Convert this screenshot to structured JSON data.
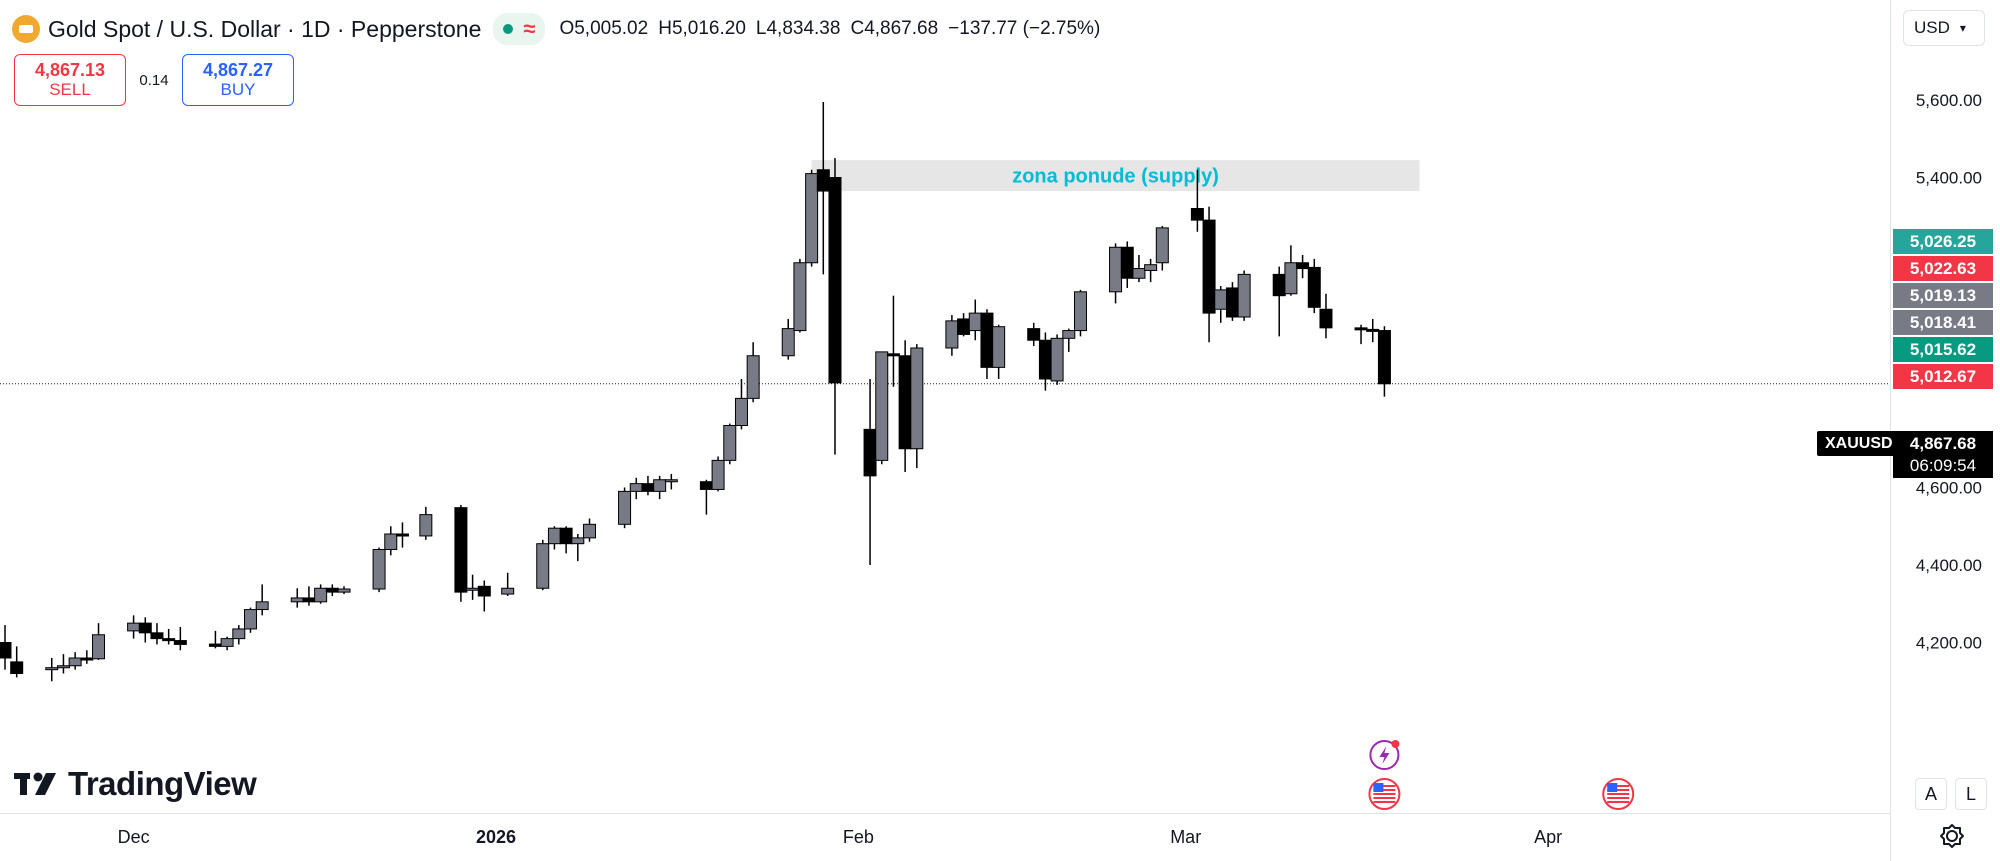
{
  "header": {
    "title": "Gold Spot / U.S. Dollar · 1D · Pepperstone",
    "open_label": "O",
    "open": "5,005.02",
    "high_label": "H",
    "high": "5,016.20",
    "low_label": "L",
    "low": "4,834.38",
    "close_label": "C",
    "close": "4,867.68",
    "change": "−137.77 (−2.75%)"
  },
  "trade": {
    "sell_price": "4,867.13",
    "sell_label": "SELL",
    "spread": "0.14",
    "buy_price": "4,867.27",
    "buy_label": "BUY"
  },
  "currency": "USD",
  "symbol": "XAUUSD",
  "last_price": {
    "value": "4,867.68",
    "countdown": "06:09:54"
  },
  "price_boxes": [
    {
      "value": "5,026.25",
      "color": "#26a69a"
    },
    {
      "value": "5,022.63",
      "color": "#f23645"
    },
    {
      "value": "5,019.13",
      "color": "#787b86"
    },
    {
      "value": "5,018.41",
      "color": "#787b86"
    },
    {
      "value": "5,015.62",
      "color": "#089981"
    },
    {
      "value": "5,012.67",
      "color": "#f23645"
    }
  ],
  "brand": "TradingView",
  "scale_buttons": {
    "auto": "A",
    "log": "L"
  },
  "colors": {
    "up": "#787b86",
    "down": "#000000",
    "zone_fill": "#e6e6e6",
    "zone_text": "#00bcd4"
  },
  "chart_data": {
    "type": "candlestick",
    "ylim": [
      4130,
      5650
    ],
    "yticks": [
      {
        "value": 5600,
        "label": "5,600.00"
      },
      {
        "value": 5400,
        "label": "5,400.00"
      },
      {
        "value": 4600,
        "label": "4,600.00"
      },
      {
        "value": 4400,
        "label": "4,400.00"
      },
      {
        "value": 4200,
        "label": "4,200.00"
      }
    ],
    "xticks": [
      {
        "date": "2025-12-01",
        "label": "Dec"
      },
      {
        "date": "2026-01-01",
        "label": "2026"
      },
      {
        "date": "2026-02-01",
        "label": "Feb"
      },
      {
        "date": "2026-03-01",
        "label": "Mar"
      },
      {
        "date": "2026-04-01",
        "label": "Apr"
      }
    ],
    "xlim": [
      "2025-11-20",
      "2026-04-26"
    ],
    "current_price": 4867.68,
    "candles": [
      {
        "date": "2025-11-20",
        "open": 4200,
        "high": 4245,
        "low": 4130,
        "close": 4160
      },
      {
        "date": "2025-11-21",
        "open": 4150,
        "high": 4190,
        "low": 4110,
        "close": 4120
      },
      {
        "date": "2025-11-24",
        "open": 4130,
        "high": 4160,
        "low": 4100,
        "close": 4135
      },
      {
        "date": "2025-11-25",
        "open": 4135,
        "high": 4170,
        "low": 4120,
        "close": 4140
      },
      {
        "date": "2025-11-26",
        "open": 4140,
        "high": 4175,
        "low": 4130,
        "close": 4160
      },
      {
        "date": "2025-11-27",
        "open": 4160,
        "high": 4180,
        "low": 4145,
        "close": 4155
      },
      {
        "date": "2025-11-28",
        "open": 4158,
        "high": 4250,
        "low": 4155,
        "close": 4220
      },
      {
        "date": "2025-12-01",
        "open": 4230,
        "high": 4270,
        "low": 4210,
        "close": 4250
      },
      {
        "date": "2025-12-02",
        "open": 4250,
        "high": 4265,
        "low": 4200,
        "close": 4225
      },
      {
        "date": "2025-12-03",
        "open": 4225,
        "high": 4250,
        "low": 4195,
        "close": 4210
      },
      {
        "date": "2025-12-04",
        "open": 4210,
        "high": 4235,
        "low": 4195,
        "close": 4205
      },
      {
        "date": "2025-12-05",
        "open": 4205,
        "high": 4240,
        "low": 4180,
        "close": 4195
      },
      {
        "date": "2025-12-08",
        "open": 4196,
        "high": 4230,
        "low": 4185,
        "close": 4190
      },
      {
        "date": "2025-12-09",
        "open": 4190,
        "high": 4215,
        "low": 4180,
        "close": 4210
      },
      {
        "date": "2025-12-10",
        "open": 4210,
        "high": 4245,
        "low": 4195,
        "close": 4235
      },
      {
        "date": "2025-12-11",
        "open": 4235,
        "high": 4290,
        "low": 4225,
        "close": 4285
      },
      {
        "date": "2025-12-12",
        "open": 4285,
        "high": 4350,
        "low": 4270,
        "close": 4305
      },
      {
        "date": "2025-12-15",
        "open": 4305,
        "high": 4340,
        "low": 4290,
        "close": 4315
      },
      {
        "date": "2025-12-16",
        "open": 4315,
        "high": 4345,
        "low": 4295,
        "close": 4305
      },
      {
        "date": "2025-12-17",
        "open": 4305,
        "high": 4350,
        "low": 4300,
        "close": 4340
      },
      {
        "date": "2025-12-18",
        "open": 4340,
        "high": 4350,
        "low": 4320,
        "close": 4330
      },
      {
        "date": "2025-12-19",
        "open": 4330,
        "high": 4345,
        "low": 4325,
        "close": 4338
      },
      {
        "date": "2025-12-22",
        "open": 4338,
        "high": 4445,
        "low": 4330,
        "close": 4440
      },
      {
        "date": "2025-12-23",
        "open": 4440,
        "high": 4500,
        "low": 4425,
        "close": 4480
      },
      {
        "date": "2025-12-24",
        "open": 4480,
        "high": 4510,
        "low": 4445,
        "close": 4475
      },
      {
        "date": "2025-12-26",
        "open": 4475,
        "high": 4550,
        "low": 4465,
        "close": 4530
      },
      {
        "date": "2025-12-29",
        "open": 4548,
        "high": 4555,
        "low": 4305,
        "close": 4330
      },
      {
        "date": "2025-12-30",
        "open": 4335,
        "high": 4375,
        "low": 4310,
        "close": 4340
      },
      {
        "date": "2025-12-31",
        "open": 4345,
        "high": 4360,
        "low": 4280,
        "close": 4320
      },
      {
        "date": "2026-01-02",
        "open": 4325,
        "high": 4380,
        "low": 4320,
        "close": 4340
      },
      {
        "date": "2026-01-05",
        "open": 4340,
        "high": 4465,
        "low": 4335,
        "close": 4455
      },
      {
        "date": "2026-01-06",
        "open": 4455,
        "high": 4500,
        "low": 4440,
        "close": 4495
      },
      {
        "date": "2026-01-07",
        "open": 4495,
        "high": 4500,
        "low": 4430,
        "close": 4455
      },
      {
        "date": "2026-01-08",
        "open": 4455,
        "high": 4480,
        "low": 4410,
        "close": 4470
      },
      {
        "date": "2026-01-09",
        "open": 4470,
        "high": 4520,
        "low": 4460,
        "close": 4505
      },
      {
        "date": "2026-01-12",
        "open": 4505,
        "high": 4600,
        "low": 4495,
        "close": 4590
      },
      {
        "date": "2026-01-13",
        "open": 4590,
        "high": 4625,
        "low": 4570,
        "close": 4610
      },
      {
        "date": "2026-01-14",
        "open": 4610,
        "high": 4630,
        "low": 4580,
        "close": 4590
      },
      {
        "date": "2026-01-15",
        "open": 4590,
        "high": 4630,
        "low": 4570,
        "close": 4620
      },
      {
        "date": "2026-01-16",
        "open": 4620,
        "high": 4635,
        "low": 4595,
        "close": 4620
      },
      {
        "date": "2026-01-19",
        "open": 4615,
        "high": 4620,
        "low": 4530,
        "close": 4595
      },
      {
        "date": "2026-01-20",
        "open": 4595,
        "high": 4680,
        "low": 4590,
        "close": 4670
      },
      {
        "date": "2026-01-21",
        "open": 4670,
        "high": 4765,
        "low": 4660,
        "close": 4760
      },
      {
        "date": "2026-01-22",
        "open": 4760,
        "high": 4880,
        "low": 4750,
        "close": 4830
      },
      {
        "date": "2026-01-23",
        "open": 4830,
        "high": 4975,
        "low": 4820,
        "close": 4940
      },
      {
        "date": "2026-01-26",
        "open": 4940,
        "high": 5035,
        "low": 4930,
        "close": 5010
      },
      {
        "date": "2026-01-27",
        "open": 5005,
        "high": 5190,
        "low": 5000,
        "close": 5180
      },
      {
        "date": "2026-01-28",
        "open": 5180,
        "high": 5420,
        "low": 5170,
        "close": 5410
      },
      {
        "date": "2026-01-29",
        "open": 5420,
        "high": 5595,
        "low": 5150,
        "close": 5365
      },
      {
        "date": "2026-01-30",
        "open": 5400,
        "high": 5450,
        "low": 4685,
        "close": 4870
      },
      {
        "date": "2026-02-02",
        "open": 4750,
        "high": 4880,
        "low": 4400,
        "close": 4630
      },
      {
        "date": "2026-02-03",
        "open": 4670,
        "high": 4950,
        "low": 4660,
        "close": 4950
      },
      {
        "date": "2026-02-04",
        "open": 4945,
        "high": 5095,
        "low": 4860,
        "close": 4940
      },
      {
        "date": "2026-02-05",
        "open": 4940,
        "high": 4980,
        "low": 4640,
        "close": 4700
      },
      {
        "date": "2026-02-06",
        "open": 4700,
        "high": 4970,
        "low": 4650,
        "close": 4960
      },
      {
        "date": "2026-02-09",
        "open": 4960,
        "high": 5045,
        "low": 4940,
        "close": 5030
      },
      {
        "date": "2026-02-10",
        "open": 5035,
        "high": 5050,
        "low": 4990,
        "close": 4995
      },
      {
        "date": "2026-02-11",
        "open": 5005,
        "high": 5085,
        "low": 4980,
        "close": 5050
      },
      {
        "date": "2026-02-12",
        "open": 5050,
        "high": 5060,
        "low": 4880,
        "close": 4910
      },
      {
        "date": "2026-02-13",
        "open": 4910,
        "high": 5020,
        "low": 4880,
        "close": 5015
      },
      {
        "date": "2026-02-16",
        "open": 5010,
        "high": 5025,
        "low": 4965,
        "close": 4980
      },
      {
        "date": "2026-02-17",
        "open": 4980,
        "high": 5000,
        "low": 4850,
        "close": 4880
      },
      {
        "date": "2026-02-18",
        "open": 4875,
        "high": 4995,
        "low": 4865,
        "close": 4985
      },
      {
        "date": "2026-02-19",
        "open": 4985,
        "high": 5010,
        "low": 4950,
        "close": 5005
      },
      {
        "date": "2026-02-20",
        "open": 5005,
        "high": 5110,
        "low": 4990,
        "close": 5105
      },
      {
        "date": "2026-02-23",
        "open": 5105,
        "high": 5230,
        "low": 5075,
        "close": 5220
      },
      {
        "date": "2026-02-24",
        "open": 5220,
        "high": 5235,
        "low": 5115,
        "close": 5140
      },
      {
        "date": "2026-02-25",
        "open": 5140,
        "high": 5200,
        "low": 5130,
        "close": 5165
      },
      {
        "date": "2026-02-26",
        "open": 5160,
        "high": 5190,
        "low": 5130,
        "close": 5175
      },
      {
        "date": "2026-02-27",
        "open": 5180,
        "high": 5275,
        "low": 5160,
        "close": 5270
      },
      {
        "date": "2026-03-02",
        "open": 5320,
        "high": 5420,
        "low": 5260,
        "close": 5290
      },
      {
        "date": "2026-03-03",
        "open": 5290,
        "high": 5325,
        "low": 4975,
        "close": 5050
      },
      {
        "date": "2026-03-04",
        "open": 5060,
        "high": 5120,
        "low": 5025,
        "close": 5110
      },
      {
        "date": "2026-03-05",
        "open": 5115,
        "high": 5130,
        "low": 5030,
        "close": 5040
      },
      {
        "date": "2026-03-06",
        "open": 5040,
        "high": 5160,
        "low": 5030,
        "close": 5150
      },
      {
        "date": "2026-03-09",
        "open": 5150,
        "high": 5170,
        "low": 4990,
        "close": 5095
      },
      {
        "date": "2026-03-10",
        "open": 5100,
        "high": 5225,
        "low": 5095,
        "close": 5180
      },
      {
        "date": "2026-03-11",
        "open": 5180,
        "high": 5200,
        "low": 5140,
        "close": 5165
      },
      {
        "date": "2026-03-12",
        "open": 5168,
        "high": 5190,
        "low": 5050,
        "close": 5065
      },
      {
        "date": "2026-03-13",
        "open": 5060,
        "high": 5100,
        "low": 4985,
        "close": 5012
      },
      {
        "date": "2026-03-16",
        "open": 5012,
        "high": 5020,
        "low": 4970,
        "close": 5010
      },
      {
        "date": "2026-03-17",
        "open": 5008,
        "high": 5035,
        "low": 4975,
        "close": 5005
      },
      {
        "date": "2026-03-18",
        "open": 5005.02,
        "high": 5016.2,
        "low": 4834.38,
        "close": 4867.68
      }
    ],
    "zone": {
      "label": "zona ponude (supply)",
      "top": 5445,
      "bottom": 5365,
      "start": "2026-01-28",
      "end": "2026-03-21"
    },
    "events": [
      {
        "date": "2026-03-18",
        "icon": "lightning-icon"
      },
      {
        "date": "2026-03-18",
        "icon": "us-flag-icon"
      },
      {
        "date": "2026-04-07",
        "icon": "us-flag-icon"
      }
    ]
  }
}
